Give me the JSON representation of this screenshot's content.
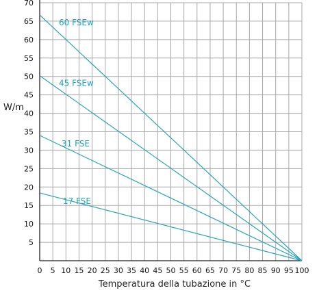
{
  "chart_data": {
    "type": "line",
    "title": "",
    "xlabel": "Temperatura della tubazione in °C",
    "ylabel": "W/m",
    "xlim": [
      0,
      100
    ],
    "ylim": [
      0,
      70
    ],
    "x_ticks": [
      "0",
      "5",
      "10",
      "15",
      "20",
      "25",
      "30",
      "35",
      "40",
      "45",
      "50",
      "55",
      "60",
      "65",
      "70",
      "75",
      "80",
      "85",
      "90",
      "95",
      "100"
    ],
    "y_ticks": [
      "5",
      "10",
      "15",
      "20",
      "25",
      "30",
      "35",
      "40",
      "45",
      "50",
      "55",
      "60",
      "65",
      "70"
    ],
    "grid": true,
    "line_color": "#2aa3b8",
    "label_color": "#1fa3b8",
    "series": [
      {
        "name": "60 FSEw",
        "x": [
          0,
          100
        ],
        "y": [
          66.7,
          0
        ]
      },
      {
        "name": "45 FSEw",
        "x": [
          0,
          100
        ],
        "y": [
          50.2,
          0
        ]
      },
      {
        "name": "31 FSE",
        "x": [
          0,
          100
        ],
        "y": [
          34.0,
          0
        ]
      },
      {
        "name": "17 FSE",
        "x": [
          0,
          100
        ],
        "y": [
          18.4,
          0
        ]
      }
    ]
  }
}
